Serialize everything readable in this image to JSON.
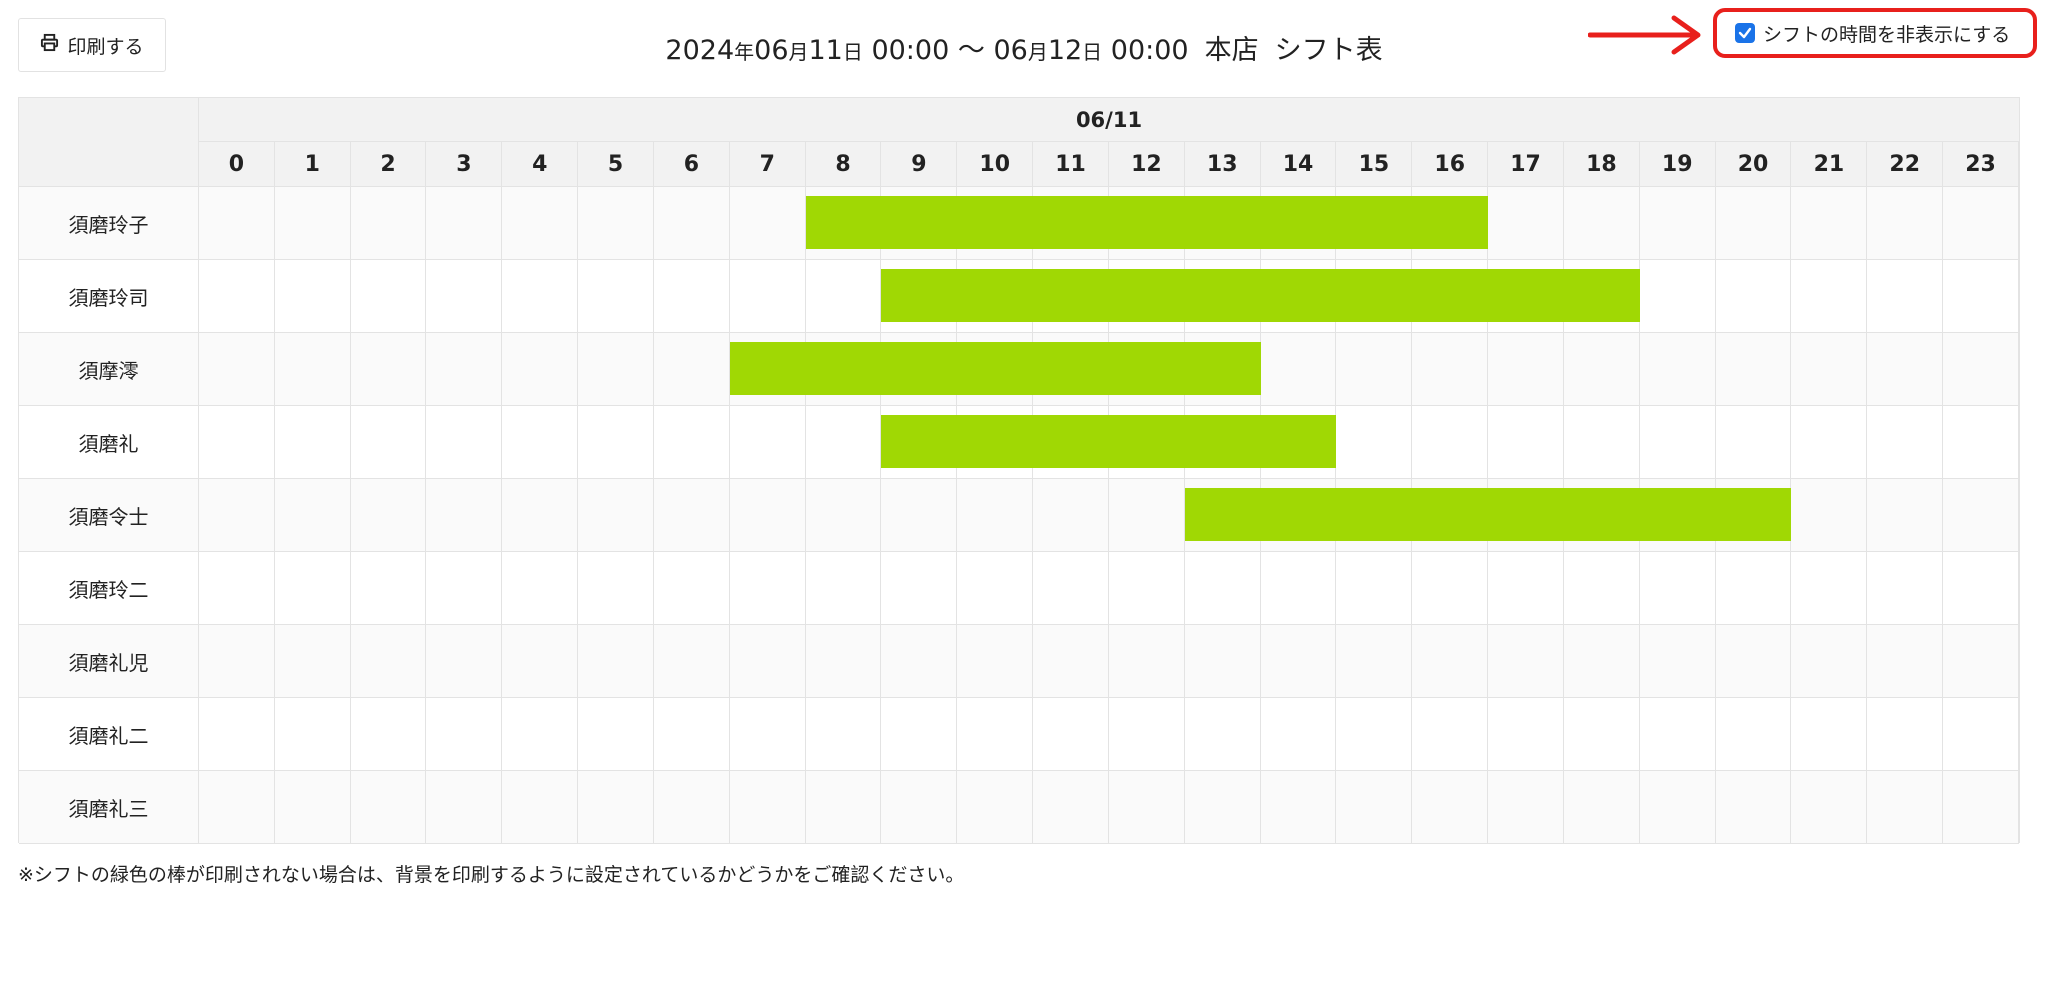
{
  "toolbar": {
    "print_label": "印刷する"
  },
  "title": {
    "start_year": "2024",
    "year_suffix": "年",
    "start_month": "06",
    "month_suffix": "月",
    "start_day": "11",
    "day_suffix": "日",
    "start_time": "00:00",
    "tilde": "〜",
    "end_month": "06",
    "end_day": "12",
    "end_time": "00:00",
    "store": "本店",
    "sheet": "シフト表"
  },
  "toggle": {
    "label": "シフトの時間を非表示にする",
    "checked": true
  },
  "schedule": {
    "date": "06/11",
    "hours": [
      "0",
      "1",
      "2",
      "3",
      "4",
      "5",
      "6",
      "7",
      "8",
      "9",
      "10",
      "11",
      "12",
      "13",
      "14",
      "15",
      "16",
      "17",
      "18",
      "19",
      "20",
      "21",
      "22",
      "23"
    ],
    "staff": [
      {
        "name": "須磨玲子",
        "shift": [
          8,
          17
        ]
      },
      {
        "name": "須磨玲司",
        "shift": [
          9,
          19
        ]
      },
      {
        "name": "須摩澪",
        "shift": [
          7,
          14
        ]
      },
      {
        "name": "須磨礼",
        "shift": [
          9,
          15
        ]
      },
      {
        "name": "須磨令士",
        "shift": [
          13,
          21
        ]
      },
      {
        "name": "須磨玲二",
        "shift": null
      },
      {
        "name": "須磨礼児",
        "shift": null
      },
      {
        "name": "須磨礼二",
        "shift": null
      },
      {
        "name": "須磨礼三",
        "shift": null
      }
    ]
  },
  "colors": {
    "shift_bar": "#a0d804",
    "highlight": "#e8201c",
    "checkbox": "#1a73e8"
  },
  "note": "※シフトの緑色の棒が印刷されない場合は、背景を印刷するように設定されているかどうかをご確認ください。"
}
